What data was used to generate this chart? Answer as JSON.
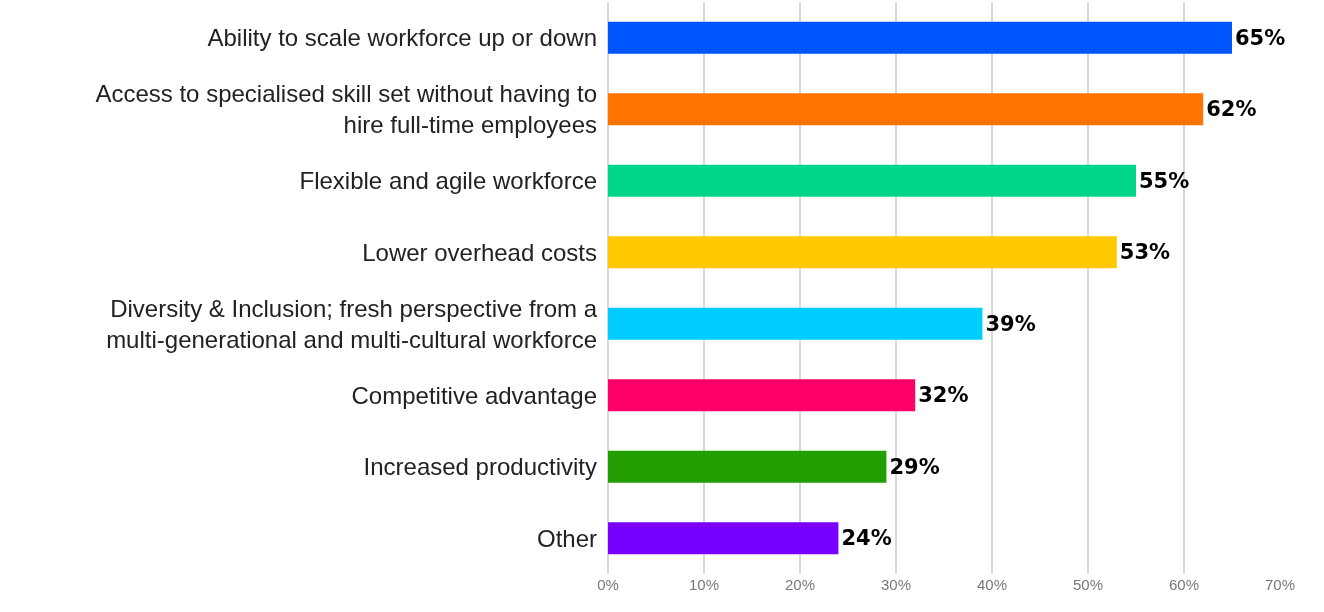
{
  "chart_data": {
    "type": "bar",
    "orientation": "horizontal",
    "categories": [
      "Ability to scale workforce up or down",
      "Access to specialised skill set without having to\nhire full-time employees",
      "Flexible and agile workforce",
      "Lower overhead costs",
      "Diversity & Inclusion; fresh perspective from a\nmulti-generational and multi-cultural workforce",
      "Competitive advantage",
      "Increased productivity",
      "Other"
    ],
    "values": [
      65,
      62,
      55,
      53,
      39,
      32,
      29,
      24
    ],
    "value_labels": [
      "65%",
      "62%",
      "55%",
      "53%",
      "39%",
      "32%",
      "29%",
      "24%"
    ],
    "colors": [
      "#0055ff",
      "#ff7300",
      "#00d68a",
      "#ffc800",
      "#00ccff",
      "#ff0066",
      "#229e00",
      "#7700ff"
    ],
    "xlim": [
      0,
      70
    ],
    "xticks": [
      {
        "value": 0,
        "label": "0%"
      },
      {
        "value": 10,
        "label": "10%"
      },
      {
        "value": 20,
        "label": "20%"
      },
      {
        "value": 30,
        "label": "30%"
      },
      {
        "value": 40,
        "label": "40%"
      },
      {
        "value": 50,
        "label": "50%"
      },
      {
        "value": 60,
        "label": "60%"
      },
      {
        "value": 70,
        "label": "70%"
      }
    ],
    "grid": "x"
  }
}
